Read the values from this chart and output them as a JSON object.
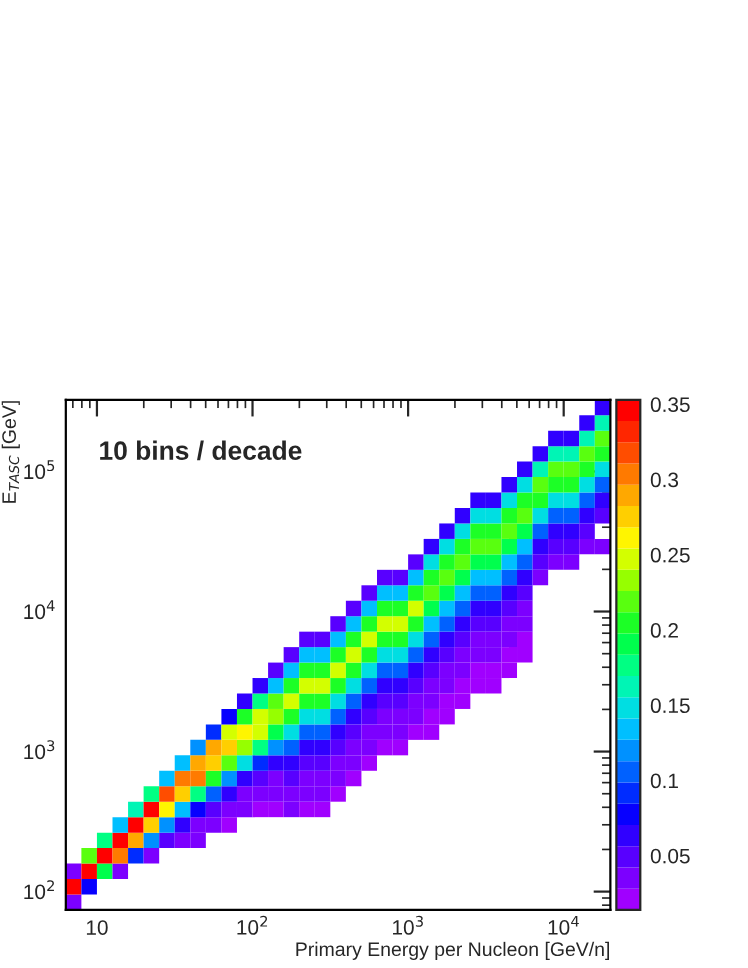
{
  "chart_data": {
    "type": "heatmap",
    "xlabel": "Primary Energy per Nucleon [GeV/n]",
    "ylabel": "E$_{TASC}$ [GeV]",
    "annotations": [
      "10 bins / decade"
    ],
    "log": "xy",
    "xlim": [
      6.31,
      19953
    ],
    "ylim": [
      74,
      325000
    ],
    "xticks": [
      {
        "value": 10,
        "label": "10"
      },
      {
        "value": 100,
        "label": "10$^{2}$"
      },
      {
        "value": 1000,
        "label": "10$^{3}$"
      },
      {
        "value": 10000,
        "label": "10$^{4}$"
      }
    ],
    "yticks": [
      {
        "value": 100,
        "label": "10$^{2}$"
      },
      {
        "value": 1000,
        "label": "10$^{3}$"
      },
      {
        "value": 10000,
        "label": "10$^{4}$"
      },
      {
        "value": 100000,
        "label": "10$^{5}$"
      }
    ],
    "clim": [
      0.014,
      0.353
    ],
    "cticks": [
      0.05,
      0.1,
      0.15,
      0.2,
      0.25,
      0.3,
      0.35
    ],
    "grid": false,
    "cells": [
      [
        null,
        null,
        null,
        null,
        null,
        null,
        null,
        null,
        null,
        null,
        null,
        null,
        null,
        null,
        null,
        null,
        null,
        null,
        null,
        null,
        null,
        null,
        null,
        null,
        null,
        null,
        null,
        null,
        null,
        null,
        null,
        null,
        null,
        null,
        0.07
      ],
      [
        null,
        null,
        null,
        null,
        null,
        null,
        null,
        null,
        null,
        null,
        null,
        null,
        null,
        null,
        null,
        null,
        null,
        null,
        null,
        null,
        null,
        null,
        null,
        null,
        null,
        null,
        null,
        null,
        null,
        null,
        null,
        null,
        null,
        0.07,
        0.16
      ],
      [
        null,
        null,
        null,
        null,
        null,
        null,
        null,
        null,
        null,
        null,
        null,
        null,
        null,
        null,
        null,
        null,
        null,
        null,
        null,
        null,
        null,
        null,
        null,
        null,
        null,
        null,
        null,
        null,
        null,
        null,
        null,
        0.07,
        0.07,
        0.16,
        0.22
      ],
      [
        null,
        null,
        null,
        null,
        null,
        null,
        null,
        null,
        null,
        null,
        null,
        null,
        null,
        null,
        null,
        null,
        null,
        null,
        null,
        null,
        null,
        null,
        null,
        null,
        null,
        null,
        null,
        null,
        null,
        null,
        0.07,
        0.16,
        0.16,
        0.22,
        0.2
      ],
      [
        null,
        null,
        null,
        null,
        null,
        null,
        null,
        null,
        null,
        null,
        null,
        null,
        null,
        null,
        null,
        null,
        null,
        null,
        null,
        null,
        null,
        null,
        null,
        null,
        null,
        null,
        null,
        null,
        null,
        0.06,
        0.16,
        0.22,
        0.22,
        0.2,
        0.15
      ],
      [
        null,
        null,
        null,
        null,
        null,
        null,
        null,
        null,
        null,
        null,
        null,
        null,
        null,
        null,
        null,
        null,
        null,
        null,
        null,
        null,
        null,
        null,
        null,
        null,
        null,
        null,
        null,
        null,
        0.06,
        0.15,
        0.22,
        0.2,
        0.2,
        0.15,
        0.1
      ],
      [
        null,
        null,
        null,
        null,
        null,
        null,
        null,
        null,
        null,
        null,
        null,
        null,
        null,
        null,
        null,
        null,
        null,
        null,
        null,
        null,
        null,
        null,
        null,
        null,
        null,
        null,
        0.06,
        0.06,
        0.15,
        0.21,
        0.2,
        0.15,
        0.15,
        0.1,
        0.07
      ],
      [
        null,
        null,
        null,
        null,
        null,
        null,
        null,
        null,
        null,
        null,
        null,
        null,
        null,
        null,
        null,
        null,
        null,
        null,
        null,
        null,
        null,
        null,
        null,
        null,
        null,
        0.06,
        0.15,
        0.15,
        0.21,
        0.22,
        0.15,
        0.1,
        0.1,
        0.07,
        0.05
      ],
      [
        null,
        null,
        null,
        null,
        null,
        null,
        null,
        null,
        null,
        null,
        null,
        null,
        null,
        null,
        null,
        null,
        null,
        null,
        null,
        null,
        null,
        null,
        null,
        null,
        0.06,
        0.15,
        0.21,
        0.21,
        0.22,
        0.19,
        0.1,
        0.07,
        0.07,
        0.05,
        null
      ],
      [
        null,
        null,
        null,
        null,
        null,
        null,
        null,
        null,
        null,
        null,
        null,
        null,
        null,
        null,
        null,
        null,
        null,
        null,
        null,
        null,
        null,
        null,
        null,
        0.06,
        0.15,
        0.21,
        0.22,
        0.22,
        0.19,
        0.14,
        0.07,
        0.05,
        0.05,
        0.04,
        0.03
      ],
      [
        null,
        null,
        null,
        null,
        null,
        null,
        null,
        null,
        null,
        null,
        null,
        null,
        null,
        null,
        null,
        null,
        null,
        null,
        null,
        null,
        null,
        null,
        0.05,
        0.15,
        0.21,
        0.22,
        0.19,
        0.19,
        0.14,
        0.1,
        0.05,
        0.04,
        0.04,
        null,
        null
      ],
      [
        null,
        null,
        null,
        null,
        null,
        null,
        null,
        null,
        null,
        null,
        null,
        null,
        null,
        null,
        null,
        null,
        null,
        null,
        null,
        null,
        0.05,
        0.05,
        0.14,
        0.21,
        0.22,
        0.19,
        0.14,
        0.14,
        0.1,
        0.07,
        0.04,
        null,
        null,
        null,
        null
      ],
      [
        null,
        null,
        null,
        null,
        null,
        null,
        null,
        null,
        null,
        null,
        null,
        null,
        null,
        null,
        null,
        null,
        null,
        null,
        null,
        0.05,
        0.14,
        0.14,
        0.21,
        0.22,
        0.19,
        0.14,
        0.1,
        0.1,
        0.07,
        0.05,
        null,
        null,
        null,
        null,
        null
      ],
      [
        null,
        null,
        null,
        null,
        null,
        null,
        null,
        null,
        null,
        null,
        null,
        null,
        null,
        null,
        null,
        null,
        null,
        null,
        0.05,
        0.14,
        0.21,
        0.21,
        0.24,
        0.19,
        0.14,
        0.1,
        0.07,
        0.07,
        0.05,
        0.04,
        null,
        null,
        null,
        null,
        null
      ],
      [
        null,
        null,
        null,
        null,
        null,
        null,
        null,
        null,
        null,
        null,
        null,
        null,
        null,
        null,
        null,
        null,
        null,
        0.05,
        0.14,
        0.21,
        0.24,
        0.24,
        0.21,
        0.14,
        0.1,
        0.07,
        0.05,
        0.05,
        0.04,
        0.03,
        null,
        null,
        null,
        null,
        null
      ],
      [
        null,
        null,
        null,
        null,
        null,
        null,
        null,
        null,
        null,
        null,
        null,
        null,
        null,
        null,
        null,
        0.05,
        0.05,
        0.14,
        0.21,
        0.24,
        0.21,
        0.21,
        0.15,
        0.1,
        0.07,
        0.05,
        0.04,
        0.04,
        0.03,
        0.02,
        null,
        null,
        null,
        null,
        null
      ],
      [
        null,
        null,
        null,
        null,
        null,
        null,
        null,
        null,
        null,
        null,
        null,
        null,
        null,
        null,
        0.05,
        0.14,
        0.14,
        0.21,
        0.24,
        0.21,
        0.15,
        0.15,
        0.1,
        0.07,
        0.05,
        0.04,
        0.03,
        0.03,
        0.02,
        0.02,
        null,
        null,
        null,
        null,
        null
      ],
      [
        null,
        null,
        null,
        null,
        null,
        null,
        null,
        null,
        null,
        null,
        null,
        null,
        null,
        0.05,
        0.14,
        0.21,
        0.21,
        0.24,
        0.21,
        0.15,
        0.1,
        0.1,
        0.07,
        0.05,
        0.04,
        0.03,
        0.02,
        0.02,
        0.02,
        null,
        null,
        null,
        null,
        null,
        null
      ],
      [
        null,
        null,
        null,
        null,
        null,
        null,
        null,
        null,
        null,
        null,
        null,
        null,
        0.06,
        0.14,
        0.21,
        0.24,
        0.24,
        0.21,
        0.15,
        0.1,
        0.07,
        0.07,
        0.05,
        0.04,
        0.03,
        0.02,
        0.02,
        0.02,
        null,
        null,
        null,
        null,
        null,
        null,
        null
      ],
      [
        null,
        null,
        null,
        null,
        null,
        null,
        null,
        null,
        null,
        null,
        null,
        0.06,
        0.17,
        0.22,
        0.24,
        0.21,
        0.21,
        0.15,
        0.1,
        0.07,
        0.05,
        0.05,
        0.04,
        0.03,
        0.02,
        0.02,
        null,
        null,
        null,
        null,
        null,
        null,
        null,
        null,
        null
      ],
      [
        null,
        null,
        null,
        null,
        null,
        null,
        null,
        null,
        null,
        null,
        0.08,
        0.21,
        0.25,
        0.23,
        0.21,
        0.15,
        0.15,
        0.1,
        0.07,
        0.05,
        0.04,
        0.04,
        0.03,
        0.02,
        0.02,
        null,
        null,
        null,
        null,
        null,
        null,
        null,
        null,
        null,
        null
      ],
      [
        null,
        null,
        null,
        null,
        null,
        null,
        null,
        null,
        null,
        0.09,
        0.25,
        0.26,
        0.24,
        0.19,
        0.15,
        0.1,
        0.1,
        0.07,
        0.05,
        0.04,
        0.03,
        0.03,
        0.02,
        0.02,
        null,
        null,
        null,
        null,
        null,
        null,
        null,
        null,
        null,
        null,
        null
      ],
      [
        null,
        null,
        null,
        null,
        null,
        null,
        null,
        null,
        0.12,
        0.29,
        0.27,
        0.23,
        0.18,
        0.12,
        0.1,
        0.07,
        0.07,
        0.05,
        0.04,
        0.03,
        0.02,
        0.02,
        null,
        null,
        null,
        null,
        null,
        null,
        null,
        null,
        null,
        null,
        null,
        null,
        null
      ],
      [
        null,
        null,
        null,
        null,
        null,
        null,
        null,
        0.13,
        0.29,
        0.27,
        0.22,
        0.15,
        0.09,
        0.06,
        0.07,
        0.05,
        0.05,
        0.04,
        0.03,
        0.02,
        null,
        null,
        null,
        null,
        null,
        null,
        null,
        null,
        null,
        null,
        null,
        null,
        null,
        null,
        null
      ],
      [
        null,
        null,
        null,
        null,
        null,
        null,
        0.14,
        0.31,
        0.3,
        0.2,
        0.12,
        0.07,
        0.05,
        0.04,
        0.05,
        0.04,
        0.04,
        0.03,
        0.02,
        null,
        null,
        null,
        null,
        null,
        null,
        null,
        null,
        null,
        null,
        null,
        null,
        null,
        null,
        null,
        null
      ],
      [
        null,
        null,
        null,
        null,
        null,
        0.17,
        0.32,
        0.28,
        0.18,
        0.1,
        0.06,
        0.04,
        0.03,
        0.03,
        0.04,
        0.03,
        0.03,
        0.02,
        null,
        null,
        null,
        null,
        null,
        null,
        null,
        null,
        null,
        null,
        null,
        null,
        null,
        null,
        null,
        null,
        null
      ],
      [
        null,
        null,
        null,
        null,
        0.16,
        0.34,
        0.26,
        0.14,
        0.08,
        0.05,
        0.03,
        0.03,
        0.02,
        0.02,
        0.03,
        0.02,
        0.02,
        null,
        null,
        null,
        null,
        null,
        null,
        null,
        null,
        null,
        null,
        null,
        null,
        null,
        null,
        null,
        null,
        null,
        null
      ],
      [
        null,
        null,
        null,
        0.13,
        0.34,
        0.27,
        0.12,
        0.06,
        0.04,
        0.03,
        0.02,
        null,
        null,
        null,
        null,
        null,
        null,
        null,
        null,
        null,
        null,
        null,
        null,
        null,
        null,
        null,
        null,
        null,
        null,
        null,
        null,
        null,
        null,
        null,
        null
      ],
      [
        null,
        null,
        0.17,
        0.34,
        0.29,
        0.12,
        0.05,
        0.04,
        0.03,
        null,
        null,
        null,
        null,
        null,
        null,
        null,
        null,
        null,
        null,
        null,
        null,
        null,
        null,
        null,
        null,
        null,
        null,
        null,
        null,
        null,
        null,
        null,
        null,
        null,
        null
      ],
      [
        null,
        0.22,
        0.34,
        0.31,
        0.09,
        0.03,
        null,
        null,
        null,
        null,
        null,
        null,
        null,
        null,
        null,
        null,
        null,
        null,
        null,
        null,
        null,
        null,
        null,
        null,
        null,
        null,
        null,
        null,
        null,
        null,
        null,
        null,
        null,
        null,
        null
      ],
      [
        0.03,
        0.34,
        0.19,
        0.03,
        null,
        null,
        null,
        null,
        null,
        null,
        null,
        null,
        null,
        null,
        null,
        null,
        null,
        null,
        null,
        null,
        null,
        null,
        null,
        null,
        null,
        null,
        null,
        null,
        null,
        null,
        null,
        null,
        null,
        null,
        null
      ],
      [
        0.34,
        0.08,
        null,
        null,
        null,
        null,
        null,
        null,
        null,
        null,
        null,
        null,
        null,
        null,
        null,
        null,
        null,
        null,
        null,
        null,
        null,
        null,
        null,
        null,
        null,
        null,
        null,
        null,
        null,
        null,
        null,
        null,
        null,
        null,
        null
      ],
      [
        0.04,
        null,
        null,
        null,
        null,
        null,
        null,
        null,
        null,
        null,
        null,
        null,
        null,
        null,
        null,
        null,
        null,
        null,
        null,
        null,
        null,
        null,
        null,
        null,
        null,
        null,
        null,
        null,
        null,
        null,
        null,
        null,
        null,
        null,
        null
      ]
    ]
  }
}
